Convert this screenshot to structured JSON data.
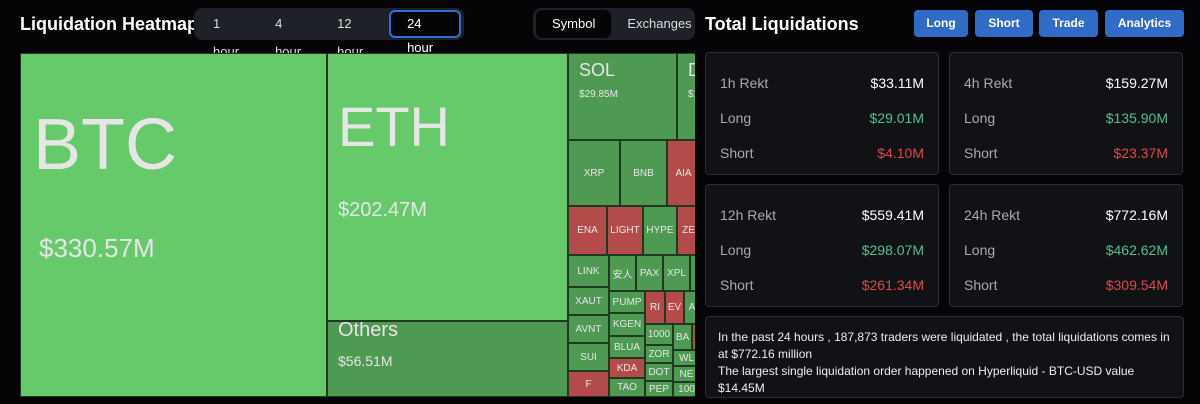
{
  "heatmap": {
    "title": "Liquidation Heatmap",
    "time_tabs": [
      {
        "label": "1 hour"
      },
      {
        "label": "4 hour"
      },
      {
        "label": "12 hour"
      },
      {
        "label": "24 hour",
        "active": true
      }
    ],
    "view_tabs": [
      {
        "label": "Symbol",
        "active": true
      },
      {
        "label": "Exchanges"
      }
    ],
    "tiles": [
      {
        "symbol": "BTC",
        "value": "$330.57M",
        "side": "long"
      },
      {
        "symbol": "ETH",
        "value": "$202.47M",
        "side": "long"
      },
      {
        "symbol": "Others",
        "value": "$56.51M",
        "side": "long"
      },
      {
        "symbol": "SOL",
        "value": "$29.85M",
        "side": "long"
      },
      {
        "symbol": "D",
        "value": "$1",
        "side": "long"
      },
      {
        "symbol": "XRP",
        "side": "long"
      },
      {
        "symbol": "BNB",
        "side": "long"
      },
      {
        "symbol": "AIA",
        "side": "short"
      },
      {
        "symbol": "ENA",
        "side": "short"
      },
      {
        "symbol": "LIGHT",
        "side": "short"
      },
      {
        "symbol": "HYPE",
        "side": "long"
      },
      {
        "symbol": "ZE",
        "side": "short"
      },
      {
        "symbol": "LINK",
        "side": "long"
      },
      {
        "symbol": "XAUT",
        "side": "long"
      },
      {
        "symbol": "AVNT",
        "side": "long"
      },
      {
        "symbol": "SUI",
        "side": "long"
      },
      {
        "symbol": "F",
        "side": "short"
      },
      {
        "symbol": "安人",
        "side": "long"
      },
      {
        "symbol": "PAX",
        "side": "long"
      },
      {
        "symbol": "XPL",
        "side": "long"
      },
      {
        "symbol": "",
        "side": "long"
      },
      {
        "symbol": "PUMP",
        "side": "long"
      },
      {
        "symbol": "KGEN",
        "side": "long"
      },
      {
        "symbol": "BLUA",
        "side": "long"
      },
      {
        "symbol": "KDA",
        "side": "short"
      },
      {
        "symbol": "TAO",
        "side": "long"
      },
      {
        "symbol": "RI",
        "side": "short"
      },
      {
        "symbol": "EV",
        "side": "short"
      },
      {
        "symbol": "A",
        "side": "long"
      },
      {
        "symbol": "1000",
        "side": "long"
      },
      {
        "symbol": "ZOR",
        "side": "long"
      },
      {
        "symbol": "DOT",
        "side": "long"
      },
      {
        "symbol": "PEP",
        "side": "long"
      },
      {
        "symbol": "BA",
        "side": "long"
      },
      {
        "symbol": "",
        "side": "short"
      },
      {
        "symbol": "WL",
        "side": "long"
      },
      {
        "symbol": "NE",
        "side": "long"
      },
      {
        "symbol": "100",
        "side": "long"
      }
    ]
  },
  "totals": {
    "title": "Total Liquidations",
    "buttons": [
      {
        "label": "Long"
      },
      {
        "label": "Short"
      },
      {
        "label": "Trade"
      },
      {
        "label": "Analytics"
      }
    ],
    "cards": [
      {
        "label": "1h Rekt",
        "total": "$33.11M",
        "long_label": "Long",
        "long": "$29.01M",
        "short_label": "Short",
        "short": "$4.10M"
      },
      {
        "label": "4h Rekt",
        "total": "$159.27M",
        "long_label": "Long",
        "long": "$135.90M",
        "short_label": "Short",
        "short": "$23.37M"
      },
      {
        "label": "12h Rekt",
        "total": "$559.41M",
        "long_label": "Long",
        "long": "$298.07M",
        "short_label": "Short",
        "short": "$261.34M"
      },
      {
        "label": "24h Rekt",
        "total": "$772.16M",
        "long_label": "Long",
        "long": "$462.62M",
        "short_label": "Short",
        "short": "$309.54M"
      }
    ],
    "summary_line1": "In the past 24 hours , 187,873 traders were liquidated , the total liquidations comes in at $772.16 million",
    "summary_line2": "The largest single liquidation order happened on Hyperliquid - BTC-USD value $14.45M"
  },
  "colors": {
    "long_light": "#66c96a",
    "long": "#4e9a53",
    "short": "#b34b4b",
    "accent": "#2f6bc7",
    "positive": "#4fc08a",
    "negative": "#e0474c"
  }
}
